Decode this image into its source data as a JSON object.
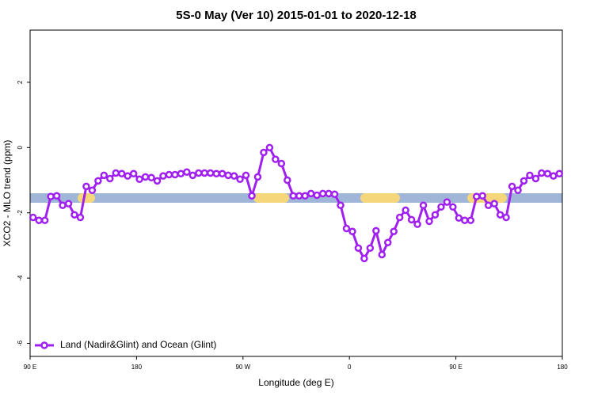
{
  "chart_data": {
    "type": "line",
    "title": "5S-0 May (Ver 10)   2015-01-01 to 2020-12-18",
    "x_label": "Longitude (deg E)",
    "y_label": "XCO2 - MLO trend (ppm)",
    "xlim": [
      90,
      540
    ],
    "ylim": [
      -6.4,
      3.6
    ],
    "xticks": [
      {
        "value": 90,
        "label": "90 E"
      },
      {
        "value": 180,
        "label": "180"
      },
      {
        "value": 270,
        "label": "90 W"
      },
      {
        "value": 360,
        "label": "0"
      },
      {
        "value": 450,
        "label": "90 E"
      },
      {
        "value": 540,
        "label": "180"
      }
    ],
    "yticks": [
      2,
      0,
      -2,
      -4,
      -6
    ],
    "legend_position": "bottom-left",
    "x": [
      92.5,
      97.5,
      102.5,
      107.5,
      112.5,
      117.5,
      122.5,
      127.5,
      132.5,
      137.5,
      142.5,
      147.5,
      152.5,
      157.5,
      162.5,
      167.5,
      172.5,
      177.5,
      182.5,
      187.5,
      192.5,
      197.5,
      202.5,
      207.5,
      212.5,
      217.5,
      222.5,
      227.5,
      232.5,
      237.5,
      242.5,
      247.5,
      252.5,
      257.5,
      262.5,
      267.5,
      272.5,
      277.5,
      282.5,
      287.5,
      292.5,
      297.5,
      302.5,
      307.5,
      312.5,
      317.5,
      322.5,
      327.5,
      332.5,
      337.5,
      342.5,
      347.5,
      352.5,
      357.5,
      362.5,
      367.5,
      372.5,
      377.5,
      382.5,
      387.5,
      392.5,
      397.5,
      402.5,
      407.5,
      412.5,
      417.5,
      422.5,
      427.5,
      432.5,
      437.5,
      442.5,
      447.5,
      452.5,
      457.5,
      462.5,
      467.5,
      472.5,
      477.5,
      482.5,
      487.5,
      492.5,
      497.5,
      502.5,
      507.5,
      512.5,
      517.5,
      522.5,
      527.5,
      532.5,
      537.5
    ],
    "series": [
      {
        "name": "Land (Nadir&Glint) and Ocean (Glint)",
        "color": "#a020f0",
        "values": [
          -2.14,
          -2.23,
          -2.23,
          -1.5,
          -1.48,
          -1.77,
          -1.72,
          -2.06,
          -2.14,
          -1.19,
          -1.31,
          -1.02,
          -0.85,
          -0.95,
          -0.78,
          -0.8,
          -0.87,
          -0.8,
          -0.97,
          -0.9,
          -0.92,
          -1.02,
          -0.87,
          -0.83,
          -0.83,
          -0.8,
          -0.75,
          -0.85,
          -0.78,
          -0.78,
          -0.78,
          -0.8,
          -0.8,
          -0.85,
          -0.87,
          -0.97,
          -0.85,
          -1.48,
          -0.9,
          -0.15,
          0,
          -0.36,
          -0.49,
          -1.0,
          -1.48,
          -1.48,
          -1.48,
          -1.41,
          -1.46,
          -1.41,
          -1.41,
          -1.43,
          -1.77,
          -2.48,
          -2.57,
          -3.08,
          -3.4,
          -3.08,
          -2.55,
          -3.28,
          -2.91,
          -2.57,
          -2.14,
          -1.92,
          -2.21,
          -2.35,
          -1.77,
          -2.26,
          -2.06,
          -1.82,
          -1.67,
          -1.82,
          -2.16,
          -2.23,
          -2.23,
          -1.5,
          -1.48,
          -1.77,
          -1.72,
          -2.06,
          -2.14,
          -1.19,
          -1.31,
          -1.02,
          -0.85,
          -0.95,
          -0.78,
          -0.8,
          -0.87,
          -0.8
        ]
      }
    ]
  }
}
